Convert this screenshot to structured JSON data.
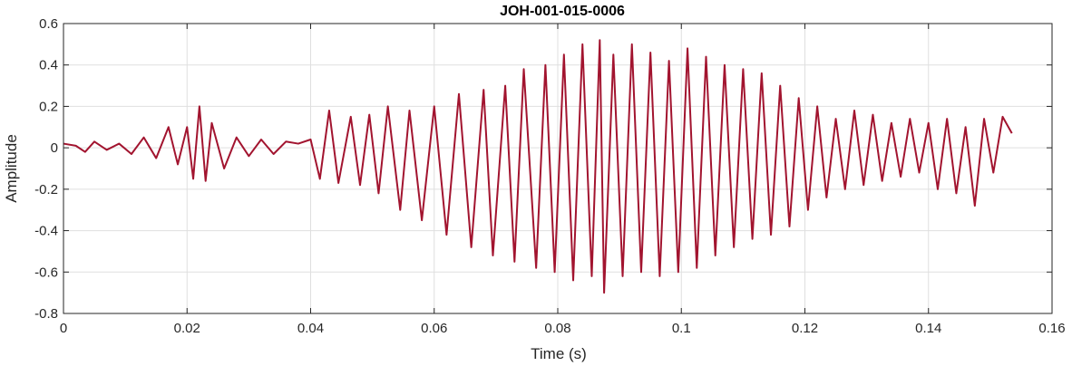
{
  "chart_data": {
    "type": "line",
    "title": "JOH-001-015-0006",
    "xlabel": "Time (s)",
    "ylabel": "Amplitude",
    "xlim": [
      0,
      0.16
    ],
    "ylim": [
      -0.8,
      0.6
    ],
    "xticks": [
      0,
      0.02,
      0.04,
      0.06,
      0.08,
      0.1,
      0.12,
      0.14,
      0.16
    ],
    "xtick_labels": [
      "0",
      "0.02",
      "0.04",
      "0.06",
      "0.08",
      "0.1",
      "0.12",
      "0.14",
      "0.16"
    ],
    "yticks": [
      -0.8,
      -0.6,
      -0.4,
      -0.2,
      0,
      0.2,
      0.4,
      0.6
    ],
    "ytick_labels": [
      "-0.8",
      "-0.6",
      "-0.4",
      "-0.2",
      "0",
      "0.2",
      "0.4",
      "0.6"
    ],
    "grid": true,
    "line_color": "#A2142F",
    "series": [
      {
        "x": [
          0,
          0.002,
          0.0035,
          0.005,
          0.007,
          0.009,
          0.011,
          0.013,
          0.015,
          0.017,
          0.0185,
          0.02,
          0.021,
          0.022,
          0.023,
          0.024,
          0.026,
          0.028,
          0.03,
          0.032,
          0.034,
          0.036,
          0.038,
          0.04,
          0.0415,
          0.043,
          0.0445,
          0.0465,
          0.048,
          0.0495,
          0.051,
          0.0525,
          0.0545,
          0.056,
          0.058,
          0.06,
          0.062,
          0.064,
          0.066,
          0.068,
          0.0695,
          0.0715,
          0.073,
          0.0745,
          0.0765,
          0.078,
          0.0795,
          0.081,
          0.0825,
          0.084,
          0.0855,
          0.0868,
          0.0875,
          0.089,
          0.0905,
          0.092,
          0.0935,
          0.095,
          0.0965,
          0.098,
          0.0995,
          0.101,
          0.1025,
          0.104,
          0.1055,
          0.107,
          0.1085,
          0.11,
          0.1115,
          0.113,
          0.1145,
          0.116,
          0.1175,
          0.119,
          0.1205,
          0.122,
          0.1235,
          0.125,
          0.1265,
          0.128,
          0.1295,
          0.131,
          0.1325,
          0.134,
          0.1355,
          0.137,
          0.1385,
          0.14,
          0.1415,
          0.143,
          0.1445,
          0.146,
          0.1475,
          0.149,
          0.1505,
          0.152,
          0.1535
        ],
        "y": [
          0.02,
          0.01,
          -0.02,
          0.03,
          -0.01,
          0.02,
          -0.03,
          0.05,
          -0.05,
          0.1,
          -0.08,
          0.1,
          -0.15,
          0.2,
          -0.16,
          0.12,
          -0.1,
          0.05,
          -0.04,
          0.04,
          -0.03,
          0.03,
          0.02,
          0.04,
          -0.15,
          0.18,
          -0.17,
          0.15,
          -0.18,
          0.16,
          -0.22,
          0.2,
          -0.3,
          0.18,
          -0.35,
          0.2,
          -0.42,
          0.26,
          -0.48,
          0.28,
          -0.52,
          0.3,
          -0.55,
          0.38,
          -0.58,
          0.4,
          -0.6,
          0.45,
          -0.64,
          0.5,
          -0.62,
          0.52,
          -0.7,
          0.45,
          -0.62,
          0.5,
          -0.6,
          0.46,
          -0.62,
          0.42,
          -0.6,
          0.48,
          -0.58,
          0.44,
          -0.52,
          0.4,
          -0.48,
          0.38,
          -0.44,
          0.36,
          -0.42,
          0.3,
          -0.38,
          0.24,
          -0.3,
          0.2,
          -0.24,
          0.14,
          -0.2,
          0.18,
          -0.18,
          0.16,
          -0.16,
          0.12,
          -0.14,
          0.14,
          -0.12,
          0.12,
          -0.2,
          0.14,
          -0.22,
          0.1,
          -0.28,
          0.14,
          -0.12,
          0.15,
          0.07
        ]
      }
    ]
  }
}
